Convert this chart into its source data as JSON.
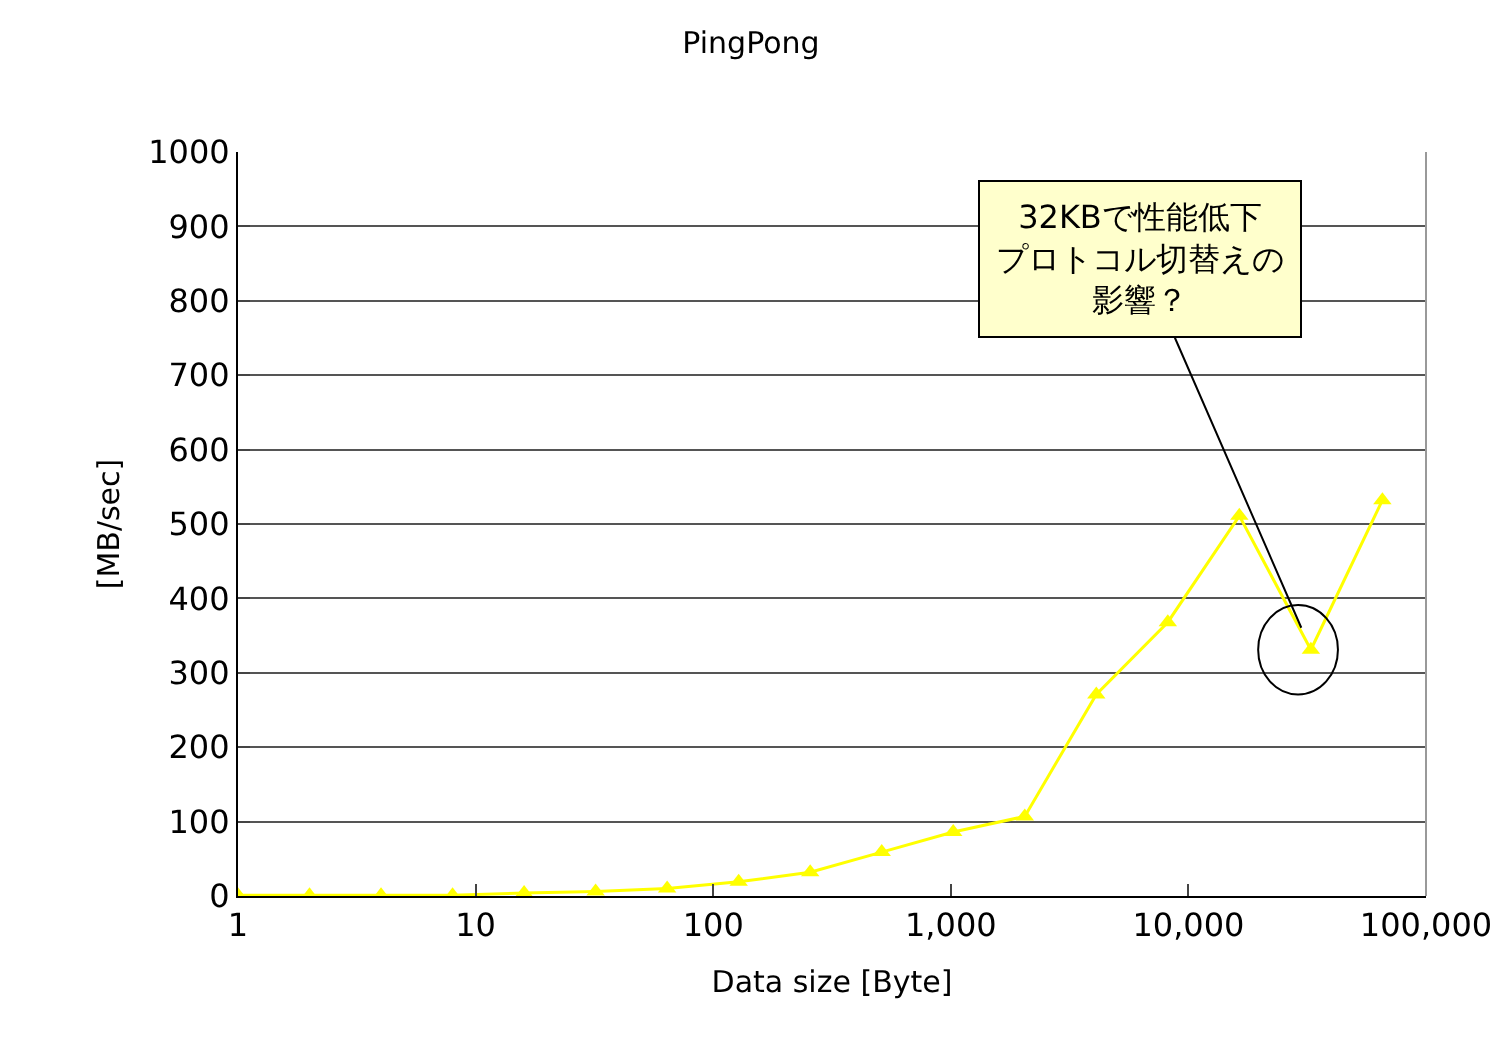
{
  "chart_data": {
    "type": "line",
    "title": "PingPong",
    "xlabel": "Data size [Byte]",
    "ylabel": "[MB/sec]",
    "log": "x",
    "x": [
      1,
      2,
      4,
      8,
      16,
      32,
      64,
      128,
      256,
      512,
      1024,
      2048,
      4096,
      8192,
      16384,
      32768,
      65536
    ],
    "series": [
      {
        "color": "#ffff00",
        "values": [
          1,
          1,
          1,
          1,
          4,
          6,
          10,
          19,
          32,
          59,
          86,
          107,
          271,
          368,
          511,
          331,
          532
        ]
      }
    ],
    "xlim": [
      1,
      100000
    ],
    "xticks": [
      1,
      10,
      100,
      {
        "value": 1000,
        "label": "1,000"
      },
      {
        "value": 10000,
        "label": "10,000"
      },
      {
        "value": 100000,
        "label": "100,000"
      }
    ],
    "ylim": [
      0,
      1000
    ],
    "yticks": [
      0,
      100,
      200,
      300,
      400,
      500,
      600,
      700,
      800,
      900,
      1000
    ],
    "grid": "y",
    "marker": "triangle",
    "line_style": "solid",
    "annotations": [
      {
        "text": "32KBで性能低下プロトコル切替えの影響？",
        "x": 32768,
        "y": 331
      }
    ]
  }
}
